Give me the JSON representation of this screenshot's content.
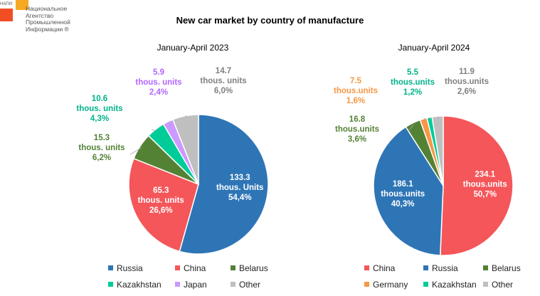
{
  "logo": {
    "short": "НАПИ",
    "lines": [
      "Национальное",
      "Агентство",
      "Промышленной",
      "Информации ®"
    ]
  },
  "title": "New car market by country of manufacture",
  "chart_data": [
    {
      "type": "pie",
      "title": "January-April 2023",
      "slices": [
        {
          "name": "Russia",
          "value": 133.3,
          "color": "#2e75b6",
          "label": [
            "133.3",
            "thous. Units",
            "54,4%"
          ],
          "label_color": "#ffffff",
          "inside": true
        },
        {
          "name": "China",
          "value": 65.3,
          "color": "#f45659",
          "label": [
            "65.3",
            "thous. units",
            "26,6%"
          ],
          "label_color": "#ffffff",
          "inside": true
        },
        {
          "name": "Belarus",
          "value": 15.3,
          "color": "#548235",
          "label": [
            "15.3",
            "thous. units",
            "6,2%"
          ],
          "label_color": "#548235",
          "inside": false
        },
        {
          "name": "Kazakhstan",
          "value": 10.6,
          "color": "#00cc99",
          "label": [
            "10.6",
            "thous. units",
            "4,3%"
          ],
          "label_color": "#00b38a",
          "inside": false
        },
        {
          "name": "Japan",
          "value": 5.9,
          "color": "#cc99ff",
          "label": [
            "5.9",
            "thous. units",
            "2,4%"
          ],
          "label_color": "#b266ff",
          "inside": false
        },
        {
          "name": "Other",
          "value": 14.7,
          "color": "#bfbfbf",
          "label": [
            "14.7",
            "thous. units",
            "6,0%"
          ],
          "label_color": "#808080",
          "inside": false
        }
      ],
      "legend": [
        "Russia",
        "China",
        "Belarus",
        "Kazakhstan",
        "Japan",
        "Other"
      ]
    },
    {
      "type": "pie",
      "title": "January-April 2024",
      "slices": [
        {
          "name": "China",
          "value": 234.1,
          "color": "#f45659",
          "label": [
            "234.1",
            "thous.units",
            "50,7%"
          ],
          "label_color": "#ffffff",
          "inside": true
        },
        {
          "name": "Russia",
          "value": 186.1,
          "color": "#2e75b6",
          "label": [
            "186.1",
            "thous.units",
            "40,3%"
          ],
          "label_color": "#ffffff",
          "inside": true
        },
        {
          "name": "Belarus",
          "value": 16.8,
          "color": "#548235",
          "label": [
            "16.8",
            "thous.units",
            "3,6%"
          ],
          "label_color": "#548235",
          "inside": false
        },
        {
          "name": "Germany",
          "value": 7.5,
          "color": "#f79646",
          "label": [
            "7.5",
            "thous.units",
            "1,6%"
          ],
          "label_color": "#f79646",
          "inside": false
        },
        {
          "name": "Kazakhstan",
          "value": 5.5,
          "color": "#00cc99",
          "label": [
            "5.5",
            "thous.units",
            "1,2%"
          ],
          "label_color": "#00b38a",
          "inside": false
        },
        {
          "name": "Other",
          "value": 11.9,
          "color": "#bfbfbf",
          "label": [
            "11.9",
            "thous.units",
            "2,6%"
          ],
          "label_color": "#808080",
          "inside": false
        }
      ],
      "legend": [
        "China",
        "Russia",
        "Belarus",
        "Germany",
        "Kazakhstan",
        "Other"
      ]
    }
  ]
}
